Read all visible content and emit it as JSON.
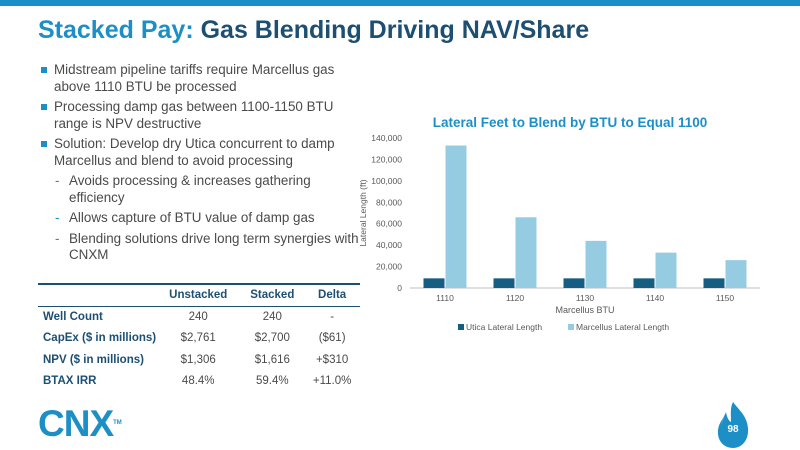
{
  "header": {
    "title_accent": "Stacked Pay:",
    "title_main": "Gas Blending Driving NAV/Share",
    "bar_color": "#1b8fc8"
  },
  "bullets": [
    {
      "level": 1,
      "text": "Midstream pipeline tariffs require Marcellus gas above 1110 BTU be processed"
    },
    {
      "level": 1,
      "text": "Processing damp gas between 1100-1150 BTU range is NPV destructive"
    },
    {
      "level": 1,
      "text": "Solution: Develop dry Utica concurrent to damp Marcellus and blend to avoid processing"
    },
    {
      "level": 2,
      "text": "Avoids processing & increases gathering efficiency"
    },
    {
      "level": 2,
      "text": "Allows capture of BTU value of damp gas"
    },
    {
      "level": 2,
      "text": "Blending solutions drive long term synergies with CNXM"
    }
  ],
  "table": {
    "headers": [
      "",
      "Unstacked",
      "Stacked",
      "Delta"
    ],
    "rows": [
      [
        "Well Count",
        "240",
        "240",
        "-"
      ],
      [
        "CapEx ($ in millions)",
        "$2,761",
        "$2,700",
        "($61)"
      ],
      [
        "NPV ($ in millions)",
        "$1,306",
        "$1,616",
        "+$310"
      ],
      [
        "BTAX IRR",
        "48.4%",
        "59.4%",
        "+11.0%"
      ]
    ]
  },
  "chart_data": {
    "type": "bar",
    "title": "Lateral Feet to Blend by BTU to Equal 1100",
    "xlabel": "Marcellus BTU",
    "ylabel": "Lateral Length (ft)",
    "categories": [
      "1110",
      "1120",
      "1130",
      "1140",
      "1150"
    ],
    "series": [
      {
        "name": "Utica Lateral Length",
        "color": "#155e82",
        "values": [
          9000,
          9000,
          9000,
          9000,
          9000
        ]
      },
      {
        "name": "Marcellus Lateral Length",
        "color": "#95cce2",
        "values": [
          133000,
          66000,
          44000,
          33000,
          26000
        ]
      }
    ],
    "ylim": [
      0,
      140000
    ],
    "yticks": [
      "0",
      "20,000",
      "40,000",
      "60,000",
      "80,000",
      "100,000",
      "120,000",
      "140,000"
    ],
    "grid": false,
    "legend_position": "bottom"
  },
  "footer": {
    "logo_text": "CNX",
    "logo_tm": "TM",
    "page_number": "98",
    "accent_color": "#1d8fc7"
  }
}
